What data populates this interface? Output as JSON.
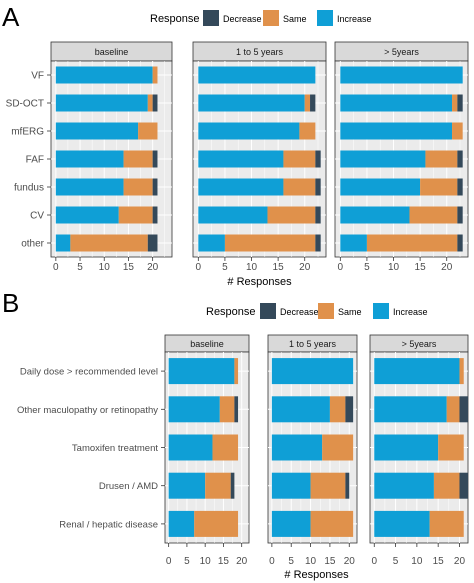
{
  "colors": {
    "decrease": "#34495a",
    "same": "#e0914b",
    "increase": "#0f9fd6",
    "panel_bg": "#ebebeb",
    "strip_bg": "#d9d9d9",
    "grid": "#ffffff",
    "axis_text": "#4d4d4d"
  },
  "chart_data": [
    {
      "panel_label": "A",
      "type": "bar",
      "orientation": "horizontal",
      "stacked": true,
      "legend_title": "Response",
      "legend_placement": "top",
      "legend": [
        "Decrease",
        "Same",
        "Increase"
      ],
      "xlabel": "# Responses",
      "xlim": [
        -1,
        24
      ],
      "xticks": [
        "0",
        "5",
        "10",
        "15",
        "20"
      ],
      "categories": [
        "VF",
        "SD-OCT",
        "mfERG",
        "FAF",
        "fundus",
        "CV",
        "other"
      ],
      "facets": [
        {
          "name": "baseline",
          "series": [
            {
              "name": "Increase",
              "values": [
                20,
                19,
                17,
                14,
                14,
                13,
                3
              ]
            },
            {
              "name": "Same",
              "values": [
                1,
                1,
                4,
                6,
                6,
                7,
                16
              ]
            },
            {
              "name": "Decrease",
              "values": [
                0,
                1,
                0,
                1,
                1,
                1,
                2
              ]
            }
          ]
        },
        {
          "name": "1 to 5 years",
          "series": [
            {
              "name": "Increase",
              "values": [
                22,
                20,
                19,
                16,
                16,
                13,
                5
              ]
            },
            {
              "name": "Same",
              "values": [
                0,
                1,
                3,
                6,
                6,
                9,
                17
              ]
            },
            {
              "name": "Decrease",
              "values": [
                0,
                1,
                0,
                1,
                1,
                1,
                1
              ]
            }
          ]
        },
        {
          "name": "> 5years",
          "series": [
            {
              "name": "Increase",
              "values": [
                23,
                21,
                21,
                16,
                15,
                13,
                5
              ]
            },
            {
              "name": "Same",
              "values": [
                0,
                1,
                2,
                6,
                7,
                9,
                17
              ]
            },
            {
              "name": "Decrease",
              "values": [
                0,
                1,
                0,
                1,
                1,
                1,
                1
              ]
            }
          ]
        }
      ]
    },
    {
      "panel_label": "B",
      "type": "bar",
      "orientation": "horizontal",
      "stacked": true,
      "legend_title": "Response",
      "legend_placement": "top",
      "legend": [
        "Decrease",
        "Same",
        "Increase"
      ],
      "xlabel": "# Responses",
      "xlim": [
        -1,
        22
      ],
      "xticks": [
        "0",
        "5",
        "10",
        "15",
        "20"
      ],
      "categories": [
        "Daily dose > recommended level",
        "Other maculopathy or retinopathy",
        "Tamoxifen treatment",
        "Drusen / AMD",
        "Renal / hepatic disease"
      ],
      "facets": [
        {
          "name": "baseline",
          "series": [
            {
              "name": "Increase",
              "values": [
                18,
                14,
                12,
                10,
                7
              ]
            },
            {
              "name": "Same",
              "values": [
                1,
                4,
                7,
                7,
                12
              ]
            },
            {
              "name": "Decrease",
              "values": [
                0,
                1,
                0,
                1,
                0
              ]
            }
          ]
        },
        {
          "name": "1 to 5 years",
          "series": [
            {
              "name": "Increase",
              "values": [
                21,
                15,
                13,
                10,
                10
              ]
            },
            {
              "name": "Same",
              "values": [
                0,
                4,
                8,
                9,
                11
              ]
            },
            {
              "name": "Decrease",
              "values": [
                0,
                2,
                0,
                1,
                0
              ]
            }
          ]
        },
        {
          "name": "> 5years",
          "series": [
            {
              "name": "Increase",
              "values": [
                20,
                17,
                15,
                14,
                13
              ]
            },
            {
              "name": "Same",
              "values": [
                1,
                3,
                6,
                6,
                8
              ]
            },
            {
              "name": "Decrease",
              "values": [
                0,
                2,
                0,
                2,
                0
              ]
            }
          ]
        }
      ]
    }
  ]
}
